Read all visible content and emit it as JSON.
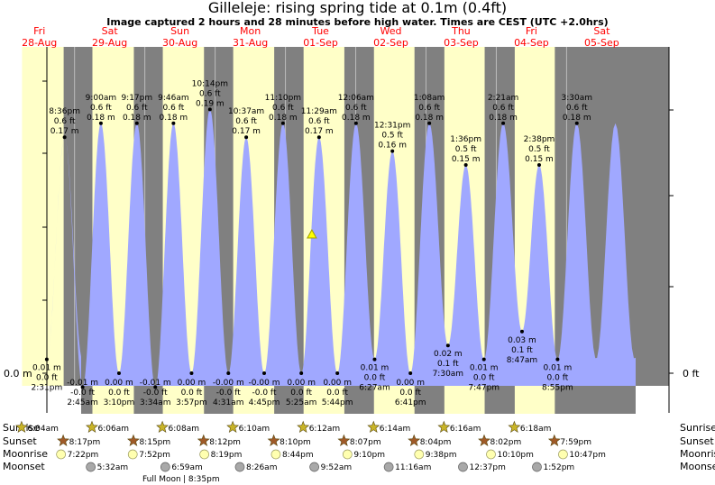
{
  "title": "Gilleleje: rising  spring tide at 0.1m (0.4ft)",
  "subtitle": "Image captured 2 hours and 28 minutes before high water. Times are CEST (UTC +2.0hrs)",
  "colors": {
    "day": "#ffffc8",
    "night": "#808080",
    "tide": "#a0a8ff",
    "date": "#ff0000",
    "sun": "#c8b428",
    "sunset": "#a05a28",
    "moon_rise": "#ffffb0",
    "moon_set": "#a8a8a8",
    "marker": "#ffff00"
  },
  "days": [
    {
      "name": "Fri",
      "date": "28-Aug"
    },
    {
      "name": "Sat",
      "date": "29-Aug"
    },
    {
      "name": "Sun",
      "date": "30-Aug"
    },
    {
      "name": "Mon",
      "date": "31-Aug"
    },
    {
      "name": "Tue",
      "date": "01-Sep"
    },
    {
      "name": "Wed",
      "date": "02-Sep"
    },
    {
      "name": "Thu",
      "date": "03-Sep"
    },
    {
      "name": "Fri",
      "date": "04-Sep"
    },
    {
      "name": "Sat",
      "date": "05-Sep"
    }
  ],
  "axis": {
    "left_label": "0.0 m",
    "right_label": "0 ft"
  },
  "row_labels": {
    "sunrise": "Sunrise",
    "sunset": "Sunset",
    "moonrise": "Moonrise",
    "moonset": "Moonset"
  },
  "moon_phase": "Full Moon",
  "moon_phase_time": "| 8:35pm",
  "chart_data": {
    "type": "area",
    "y_unit": "m",
    "ylim": [
      -0.02,
      0.21
    ],
    "current_level": 0.1,
    "tides": [
      {
        "time": "2:31 pm",
        "day": 0,
        "hour": 14.52,
        "m": "0.01 m",
        "ft": "0.0 ft",
        "value": 0.01,
        "type": "low"
      },
      {
        "time": "8:36 pm",
        "day": 0,
        "hour": 20.6,
        "m": "0.17 m",
        "ft": "0.6 ft",
        "value": 0.17,
        "type": "high"
      },
      {
        "time": "2:45 am",
        "day": 1,
        "hour": 2.75,
        "m": "-0.01 m",
        "ft": "-0.0 ft",
        "value": -0.01,
        "type": "low"
      },
      {
        "time": "9:00 am",
        "day": 1,
        "hour": 9.0,
        "m": "0.18 m",
        "ft": "0.6 ft",
        "value": 0.18,
        "type": "high"
      },
      {
        "time": "3:10 pm",
        "day": 1,
        "hour": 15.17,
        "m": "0.00 m",
        "ft": "0.0 ft",
        "value": 0.0,
        "type": "low"
      },
      {
        "time": "9:17 pm",
        "day": 1,
        "hour": 21.28,
        "m": "0.18 m",
        "ft": "0.6 ft",
        "value": 0.18,
        "type": "high"
      },
      {
        "time": "3:34 am",
        "day": 2,
        "hour": 3.57,
        "m": "-0.01 m",
        "ft": "-0.0 ft",
        "value": -0.01,
        "type": "low"
      },
      {
        "time": "9:46 am",
        "day": 2,
        "hour": 9.77,
        "m": "0.18 m",
        "ft": "0.6 ft",
        "value": 0.18,
        "type": "high"
      },
      {
        "time": "3:57 pm",
        "day": 2,
        "hour": 15.95,
        "m": "0.00 m",
        "ft": "0.0 ft",
        "value": 0.0,
        "type": "low"
      },
      {
        "time": "10:14 pm",
        "day": 2,
        "hour": 22.23,
        "m": "0.19 m",
        "ft": "0.6 ft",
        "value": 0.19,
        "type": "high"
      },
      {
        "time": "4:31 am",
        "day": 3,
        "hour": 4.52,
        "m": "-0.00 m",
        "ft": "-0.0 ft",
        "value": 0.0,
        "type": "low"
      },
      {
        "time": "10:37 am",
        "day": 3,
        "hour": 10.62,
        "m": "0.17 m",
        "ft": "0.6 ft",
        "value": 0.17,
        "type": "high"
      },
      {
        "time": "4:45 pm",
        "day": 3,
        "hour": 16.75,
        "m": "-0.00 m",
        "ft": "-0.0 ft",
        "value": 0.0,
        "type": "low"
      },
      {
        "time": "11:10 pm",
        "day": 3,
        "hour": 23.17,
        "m": "0.18 m",
        "ft": "0.6 ft",
        "value": 0.18,
        "type": "high"
      },
      {
        "time": "5:25 am",
        "day": 4,
        "hour": 5.42,
        "m": "0.00 m",
        "ft": "0.0 ft",
        "value": 0.0,
        "type": "low"
      },
      {
        "time": "11:29 am",
        "day": 4,
        "hour": 11.48,
        "m": "0.17 m",
        "ft": "0.6 ft",
        "value": 0.17,
        "type": "high"
      },
      {
        "time": "5:44 pm",
        "day": 4,
        "hour": 17.73,
        "m": "0.00 m",
        "ft": "0.0 ft",
        "value": 0.0,
        "type": "low"
      },
      {
        "time": "12:06 am",
        "day": 5,
        "hour": 0.1,
        "m": "0.18 m",
        "ft": "0.6 ft",
        "value": 0.18,
        "type": "high"
      },
      {
        "time": "6:27 am",
        "day": 5,
        "hour": 6.45,
        "m": "0.01 m",
        "ft": "0.0 ft",
        "value": 0.01,
        "type": "low"
      },
      {
        "time": "12:31 pm",
        "day": 5,
        "hour": 12.52,
        "m": "0.16 m",
        "ft": "0.5 ft",
        "value": 0.16,
        "type": "high"
      },
      {
        "time": "6:41 pm",
        "day": 5,
        "hour": 18.68,
        "m": "0.00 m",
        "ft": "0.0 ft",
        "value": 0.0,
        "type": "low"
      },
      {
        "time": "1:08 am",
        "day": 6,
        "hour": 1.13,
        "m": "0.18 m",
        "ft": "0.6 ft",
        "value": 0.18,
        "type": "high"
      },
      {
        "time": "7:30 am",
        "day": 6,
        "hour": 7.5,
        "m": "0.02 m",
        "ft": "0.1 ft",
        "value": 0.02,
        "type": "low"
      },
      {
        "time": "1:36 pm",
        "day": 6,
        "hour": 13.6,
        "m": "0.15 m",
        "ft": "0.5 ft",
        "value": 0.15,
        "type": "high"
      },
      {
        "time": "7:47 pm",
        "day": 6,
        "hour": 19.78,
        "m": "0.01 m",
        "ft": "0.0 ft",
        "value": 0.01,
        "type": "low"
      },
      {
        "time": "2:21 am",
        "day": 7,
        "hour": 2.35,
        "m": "0.18 m",
        "ft": "0.6 ft",
        "value": 0.18,
        "type": "high"
      },
      {
        "time": "8:47 am",
        "day": 7,
        "hour": 8.78,
        "m": "0.03 m",
        "ft": "0.1 ft",
        "value": 0.03,
        "type": "low"
      },
      {
        "time": "2:38 pm",
        "day": 7,
        "hour": 14.63,
        "m": "0.15 m",
        "ft": "0.5 ft",
        "value": 0.15,
        "type": "high"
      },
      {
        "time": "8:55 pm",
        "day": 7,
        "hour": 20.92,
        "m": "0.01 m",
        "ft": "0.0 ft",
        "value": 0.01,
        "type": "low"
      },
      {
        "time": "3:30 am",
        "day": 8,
        "hour": 3.5,
        "m": "0.18 m",
        "ft": "0.6 ft",
        "value": 0.18,
        "type": "high"
      }
    ],
    "sun": [
      {
        "day": 0,
        "rise": "6:04am",
        "rise_h": 6.07,
        "set": "8:17pm",
        "set_h": 20.28
      },
      {
        "day": 1,
        "rise": "6:06am",
        "rise_h": 6.1,
        "set": "8:15pm",
        "set_h": 20.25
      },
      {
        "day": 2,
        "rise": "6:08am",
        "rise_h": 6.13,
        "set": "8:12pm",
        "set_h": 20.2
      },
      {
        "day": 3,
        "rise": "6:10am",
        "rise_h": 6.17,
        "set": "8:10pm",
        "set_h": 20.17
      },
      {
        "day": 4,
        "rise": "6:12am",
        "rise_h": 6.2,
        "set": "8:07pm",
        "set_h": 20.12
      },
      {
        "day": 5,
        "rise": "6:14am",
        "rise_h": 6.23,
        "set": "8:04pm",
        "set_h": 20.07
      },
      {
        "day": 6,
        "rise": "6:16am",
        "rise_h": 6.27,
        "set": "8:02pm",
        "set_h": 20.03
      },
      {
        "day": 7,
        "rise": "6:18am",
        "rise_h": 6.3,
        "set": "7:59pm",
        "set_h": 19.98
      }
    ],
    "moonrise": [
      {
        "day": 0,
        "time": "7:22pm",
        "h": 19.37
      },
      {
        "day": 1,
        "time": "7:52pm",
        "h": 19.87
      },
      {
        "day": 2,
        "time": "8:19pm",
        "h": 20.32
      },
      {
        "day": 3,
        "time": "8:44pm",
        "h": 20.73
      },
      {
        "day": 4,
        "time": "9:10pm",
        "h": 21.17
      },
      {
        "day": 5,
        "time": "9:38pm",
        "h": 21.63
      },
      {
        "day": 6,
        "time": "10:10pm",
        "h": 22.17
      },
      {
        "day": 7,
        "time": "10:47pm",
        "h": 22.78
      }
    ],
    "moonset": [
      {
        "day": 1,
        "time": "5:32am",
        "h": 5.53
      },
      {
        "day": 2,
        "time": "6:59am",
        "h": 6.98
      },
      {
        "day": 3,
        "time": "8:26am",
        "h": 8.43
      },
      {
        "day": 4,
        "time": "9:52am",
        "h": 9.87
      },
      {
        "day": 5,
        "time": "11:16am",
        "h": 11.27
      },
      {
        "day": 6,
        "time": "12:37pm",
        "h": 12.62
      },
      {
        "day": 7,
        "time": "1:52pm",
        "h": 13.87
      }
    ],
    "current": {
      "day": 4,
      "hour": 9.03
    }
  }
}
